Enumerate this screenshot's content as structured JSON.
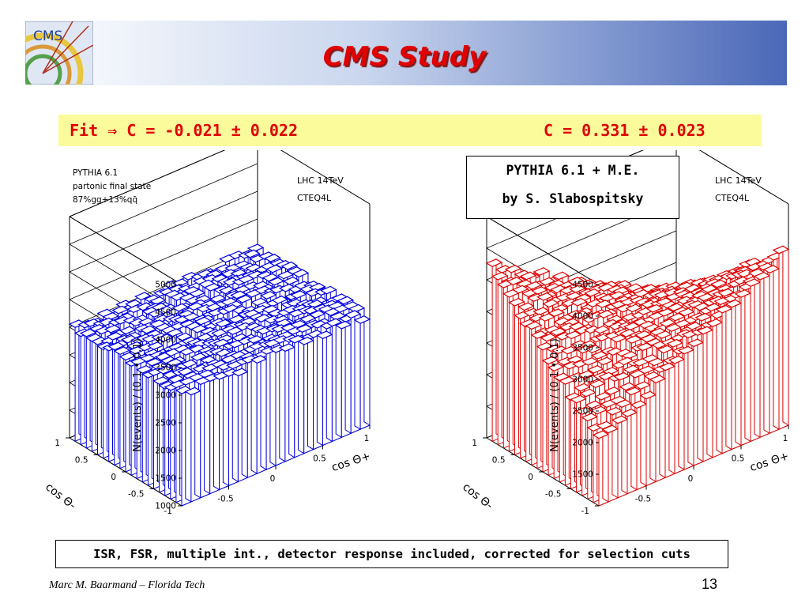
{
  "slide": {
    "title": "CMS Study",
    "fit_left": "Fit ⇒ C = -0.021 ± 0.022",
    "fit_right": "C = 0.331 ± 0.023",
    "me_line1": "PYTHIA 6.1 + M.E.",
    "me_line2": "by S. Slabospitsky",
    "note": "ISR, FSR, multiple int., detector response included, corrected for selection cuts",
    "author": "Marc M. Baarmand – Florida Tech",
    "page": "13",
    "logo_text": "CMS"
  },
  "chart_data": [
    {
      "type": "3d-lego",
      "color": "#0000e0",
      "text": [
        "PYTHIA 6.1",
        "partonic final state",
        "87%gg+13%qq̄"
      ],
      "info": [
        "LHC 14TeV",
        "CTEQ4L"
      ],
      "zlabel": "N(events) / (0.1 • 0.1)",
      "zlim": [
        1000,
        5000
      ],
      "zticks": [
        1000,
        1500,
        2000,
        2500,
        3000,
        3500,
        4000,
        4500,
        5000
      ],
      "xlabel": "cos Θ+",
      "ylabel": "cos Θ-",
      "xticks": [
        -0.5,
        0,
        0.5,
        1
      ],
      "yticks": [
        -1,
        -0.5,
        0,
        0.5,
        1
      ],
      "xlim": [
        -1,
        1
      ],
      "ylim": [
        -1,
        1
      ],
      "grid": [
        20,
        20
      ],
      "value_model": "flat",
      "params": {
        "mean": 3000,
        "noise": 90
      }
    },
    {
      "type": "3d-lego",
      "color": "#e00000",
      "text": [],
      "info": [
        "LHC 14TeV",
        "CTEQ4L"
      ],
      "zlabel": "N(events) / (0.1 • 0.1)",
      "zlim": [
        1000,
        4500
      ],
      "zticks": [
        1500,
        2000,
        2500,
        3000,
        3500,
        4000,
        4500
      ],
      "xlabel": "cos Θ+",
      "ylabel": "cos Θ-",
      "xticks": [
        -0.5,
        0,
        0.5,
        1
      ],
      "yticks": [
        -1,
        -0.5,
        0,
        0.5,
        1
      ],
      "xlim": [
        -1,
        1
      ],
      "ylim": [
        -1,
        1
      ],
      "grid": [
        20,
        20
      ],
      "value_model": "correlated",
      "params": {
        "mean": 2850,
        "C": 0.331,
        "noise": 80
      }
    }
  ]
}
